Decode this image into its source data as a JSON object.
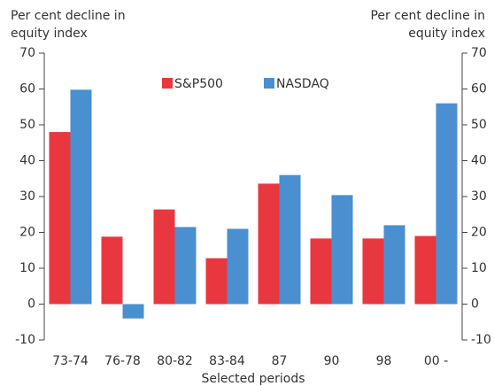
{
  "chart_data": {
    "type": "bar",
    "y_label": [
      "Per cent decline in",
      "equity index"
    ],
    "y2_label": [
      "Per cent decline in",
      "equity index"
    ],
    "x_label": "Selected periods",
    "categories": [
      "73-74",
      "76-78",
      "80-82",
      "83-84",
      "87",
      "90",
      "98",
      "00 -"
    ],
    "series": [
      {
        "name": "S&P500",
        "color": "#e8373f",
        "values": [
          48,
          18.8,
          26.4,
          12.8,
          33.6,
          18.3,
          18.3,
          19
        ]
      },
      {
        "name": "NASDAQ",
        "color": "#4a8fd0",
        "values": [
          59.8,
          -4,
          21.5,
          21,
          36,
          30.4,
          22,
          56
        ]
      }
    ],
    "ylim": [
      -10,
      70
    ],
    "yticks": [
      -10,
      0,
      10,
      20,
      30,
      40,
      50,
      60,
      70
    ],
    "y2lim": [
      -10,
      70
    ],
    "y2ticks": [
      -10,
      0,
      10,
      20,
      30,
      40,
      50,
      60,
      70
    ],
    "grid": false,
    "legend": "top"
  }
}
